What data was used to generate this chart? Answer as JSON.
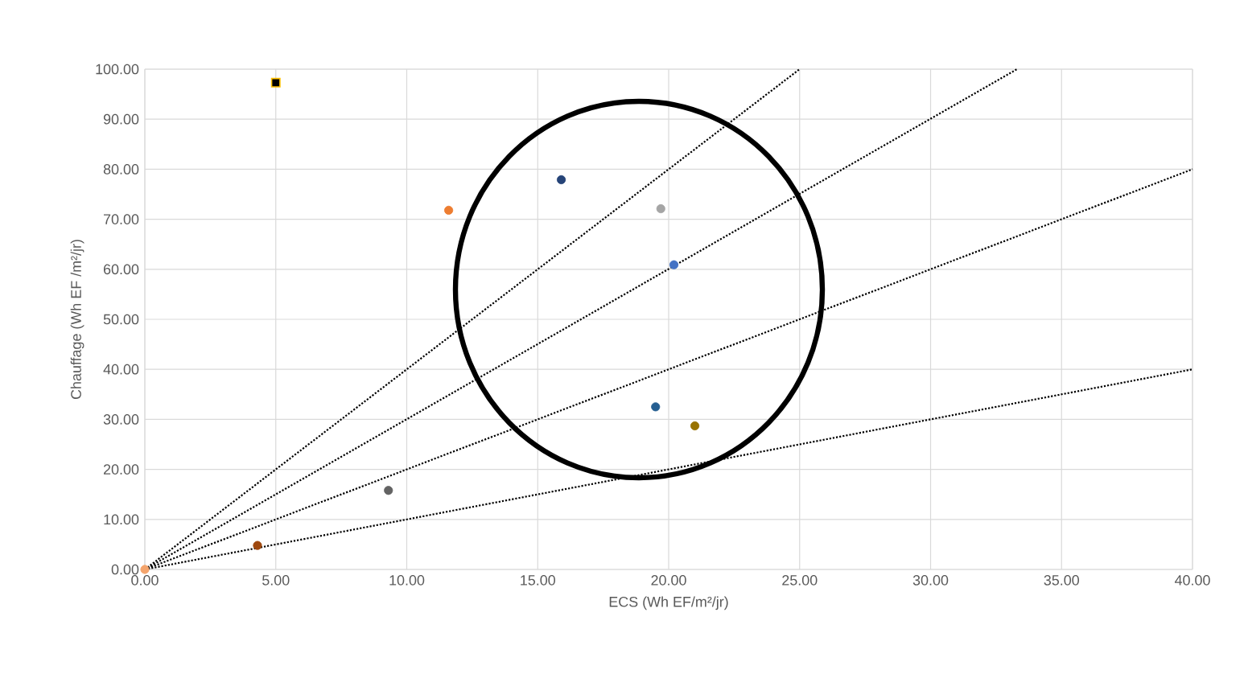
{
  "chart_data": {
    "type": "scatter",
    "xlabel": "ECS (Wh EF/m²/jr)",
    "ylabel": "Chauffage (Wh EF /m²/jr)",
    "xlim": [
      0,
      40
    ],
    "ylim": [
      0,
      100
    ],
    "xticks": [
      {
        "value": 0,
        "label": "0.00"
      },
      {
        "value": 5,
        "label": "5.00"
      },
      {
        "value": 10,
        "label": "10.00"
      },
      {
        "value": 15,
        "label": "15.00"
      },
      {
        "value": 20,
        "label": "20.00"
      },
      {
        "value": 25,
        "label": "25.00"
      },
      {
        "value": 30,
        "label": "30.00"
      },
      {
        "value": 35,
        "label": "35.00"
      },
      {
        "value": 40,
        "label": "40.00"
      }
    ],
    "yticks": [
      {
        "value": 0,
        "label": "0.00"
      },
      {
        "value": 10,
        "label": "10.00"
      },
      {
        "value": 20,
        "label": "20.00"
      },
      {
        "value": 30,
        "label": "30.00"
      },
      {
        "value": 40,
        "label": "40.00"
      },
      {
        "value": 50,
        "label": "50.00"
      },
      {
        "value": 60,
        "label": "60.00"
      },
      {
        "value": 70,
        "label": "70.00"
      },
      {
        "value": 80,
        "label": "80.00"
      },
      {
        "value": 90,
        "label": "90.00"
      },
      {
        "value": 100,
        "label": "100.00"
      }
    ],
    "grid": true,
    "marker": "circle",
    "series": [
      {
        "type": "line",
        "line_style": "dotted",
        "marker": "none",
        "color": "#000000",
        "x": [
          0,
          25
        ],
        "values": [
          0,
          100
        ]
      },
      {
        "type": "line",
        "line_style": "dotted",
        "marker": "none",
        "color": "#000000",
        "x": [
          0,
          33.3
        ],
        "values": [
          0,
          100
        ]
      },
      {
        "type": "line",
        "line_style": "dotted",
        "marker": "none",
        "color": "#000000",
        "x": [
          0,
          40
        ],
        "values": [
          0,
          80
        ]
      },
      {
        "type": "line",
        "line_style": "dotted",
        "marker": "none",
        "color": "#000000",
        "x": [
          0,
          40
        ],
        "values": [
          0,
          40
        ]
      },
      {
        "color": "#f4a46c",
        "x": [
          0
        ],
        "values": [
          0
        ]
      },
      {
        "color": "#9e480e",
        "x": [
          4.3
        ],
        "values": [
          4.8
        ]
      },
      {
        "color": "#000000",
        "marker": "square",
        "x": [
          5.0
        ],
        "values": [
          97.3
        ]
      },
      {
        "color": "#636363",
        "x": [
          9.3
        ],
        "values": [
          15.8
        ]
      },
      {
        "color": "#ed7d31",
        "x": [
          11.6
        ],
        "values": [
          71.8
        ]
      },
      {
        "color": "#264478",
        "x": [
          15.9
        ],
        "values": [
          77.9
        ]
      },
      {
        "color": "#a5a5a5",
        "x": [
          19.7
        ],
        "values": [
          72.1
        ]
      },
      {
        "color": "#4472c4",
        "x": [
          20.2
        ],
        "values": [
          60.9
        ]
      },
      {
        "color": "#255e91",
        "x": [
          19.5
        ],
        "values": [
          32.5
        ]
      },
      {
        "color": "#997300",
        "x": [
          21.0
        ],
        "values": [
          28.7
        ]
      }
    ]
  }
}
